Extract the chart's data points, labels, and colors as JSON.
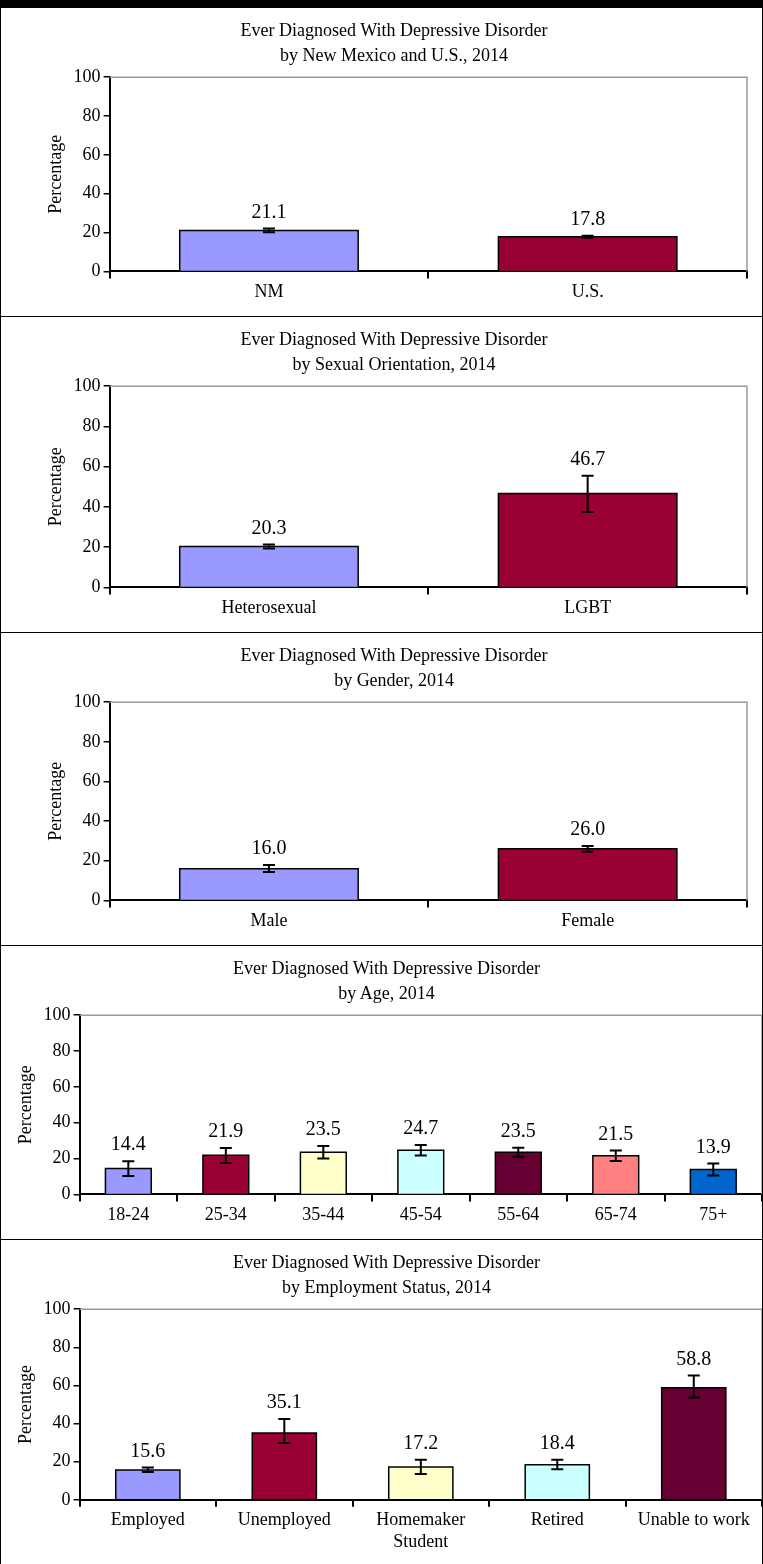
{
  "chart_data": [
    {
      "type": "bar",
      "title": "Ever Diagnosed With Depressive Disorder",
      "subtitle": "by New Mexico and U.S., 2014",
      "ylabel": "Percentage",
      "categories": [
        "NM",
        "U.S."
      ],
      "values": [
        21.1,
        17.8
      ],
      "colors": [
        "#9999ff",
        "#990033"
      ],
      "errors": [
        [
          20.1,
          22.1
        ],
        [
          17.3,
          18.3
        ]
      ],
      "ylim": [
        0,
        100
      ],
      "yticks": [
        0,
        20,
        40,
        60,
        80,
        100
      ],
      "data_labels": true
    },
    {
      "type": "bar",
      "title": "Ever Diagnosed With Depressive Disorder",
      "subtitle": "by Sexual Orientation, 2014",
      "ylabel": "Percentage",
      "categories": [
        "Heterosexual",
        "LGBT"
      ],
      "values": [
        20.3,
        46.7
      ],
      "colors": [
        "#9999ff",
        "#990033"
      ],
      "errors": [
        [
          19.3,
          21.3
        ],
        [
          37.5,
          55.5
        ]
      ],
      "ylim": [
        0,
        100
      ],
      "yticks": [
        0,
        20,
        40,
        60,
        80,
        100
      ],
      "data_labels": true
    },
    {
      "type": "bar",
      "title": "Ever Diagnosed With Depressive Disorder",
      "subtitle": "by Gender, 2014",
      "ylabel": "Percentage",
      "categories": [
        "Male",
        "Female"
      ],
      "values": [
        16.0,
        26.0
      ],
      "value_labels": [
        "16.0",
        "26.0"
      ],
      "colors": [
        "#9999ff",
        "#990033"
      ],
      "errors": [
        [
          14.3,
          17.8
        ],
        [
          24.5,
          27.5
        ]
      ],
      "ylim": [
        0,
        100
      ],
      "yticks": [
        0,
        20,
        40,
        60,
        80,
        100
      ]
    },
    {
      "type": "bar",
      "title": "Ever Diagnosed With Depressive Disorder",
      "subtitle": "by Age, 2014",
      "ylabel": "Percentage",
      "categories": [
        "18-24",
        "25-34",
        "35-44",
        "45-54",
        "55-64",
        "65-74",
        "75+"
      ],
      "values": [
        14.4,
        21.9,
        23.5,
        24.7,
        23.5,
        21.5,
        13.9
      ],
      "colors": [
        "#9999ff",
        "#990033",
        "#ffffcc",
        "#ccffff",
        "#660033",
        "#ff8080",
        "#0066cc"
      ],
      "errors": [
        [
          10.3,
          18.5
        ],
        [
          17.5,
          25.9
        ],
        [
          20.1,
          27.0
        ],
        [
          21.7,
          27.5
        ],
        [
          21.0,
          26.0
        ],
        [
          18.7,
          24.5
        ],
        [
          10.5,
          17.3
        ]
      ],
      "ylim": [
        0,
        100
      ],
      "yticks": [
        0,
        20,
        40,
        60,
        80,
        100
      ],
      "data_labels": true
    },
    {
      "type": "bar",
      "title": "Ever Diagnosed With Depressive Disorder",
      "subtitle": "by Employment Status, 2014",
      "ylabel": "Percentage",
      "categories": [
        "Employed",
        "Unemployed",
        "Homemaker Student",
        "Retired",
        "Unable to work"
      ],
      "values": [
        15.6,
        35.1,
        17.2,
        18.4,
        58.8
      ],
      "colors": [
        "#9999ff",
        "#990033",
        "#ffffcc",
        "#ccffff",
        "#660033"
      ],
      "errors": [
        [
          14.6,
          17.0
        ],
        [
          29.8,
          42.4
        ],
        [
          13.6,
          21.0
        ],
        [
          16.0,
          21.0
        ],
        [
          53.5,
          65.2
        ]
      ],
      "ylim": [
        0,
        100
      ],
      "yticks": [
        0,
        20,
        40,
        60,
        80,
        100
      ],
      "data_labels": true
    }
  ]
}
